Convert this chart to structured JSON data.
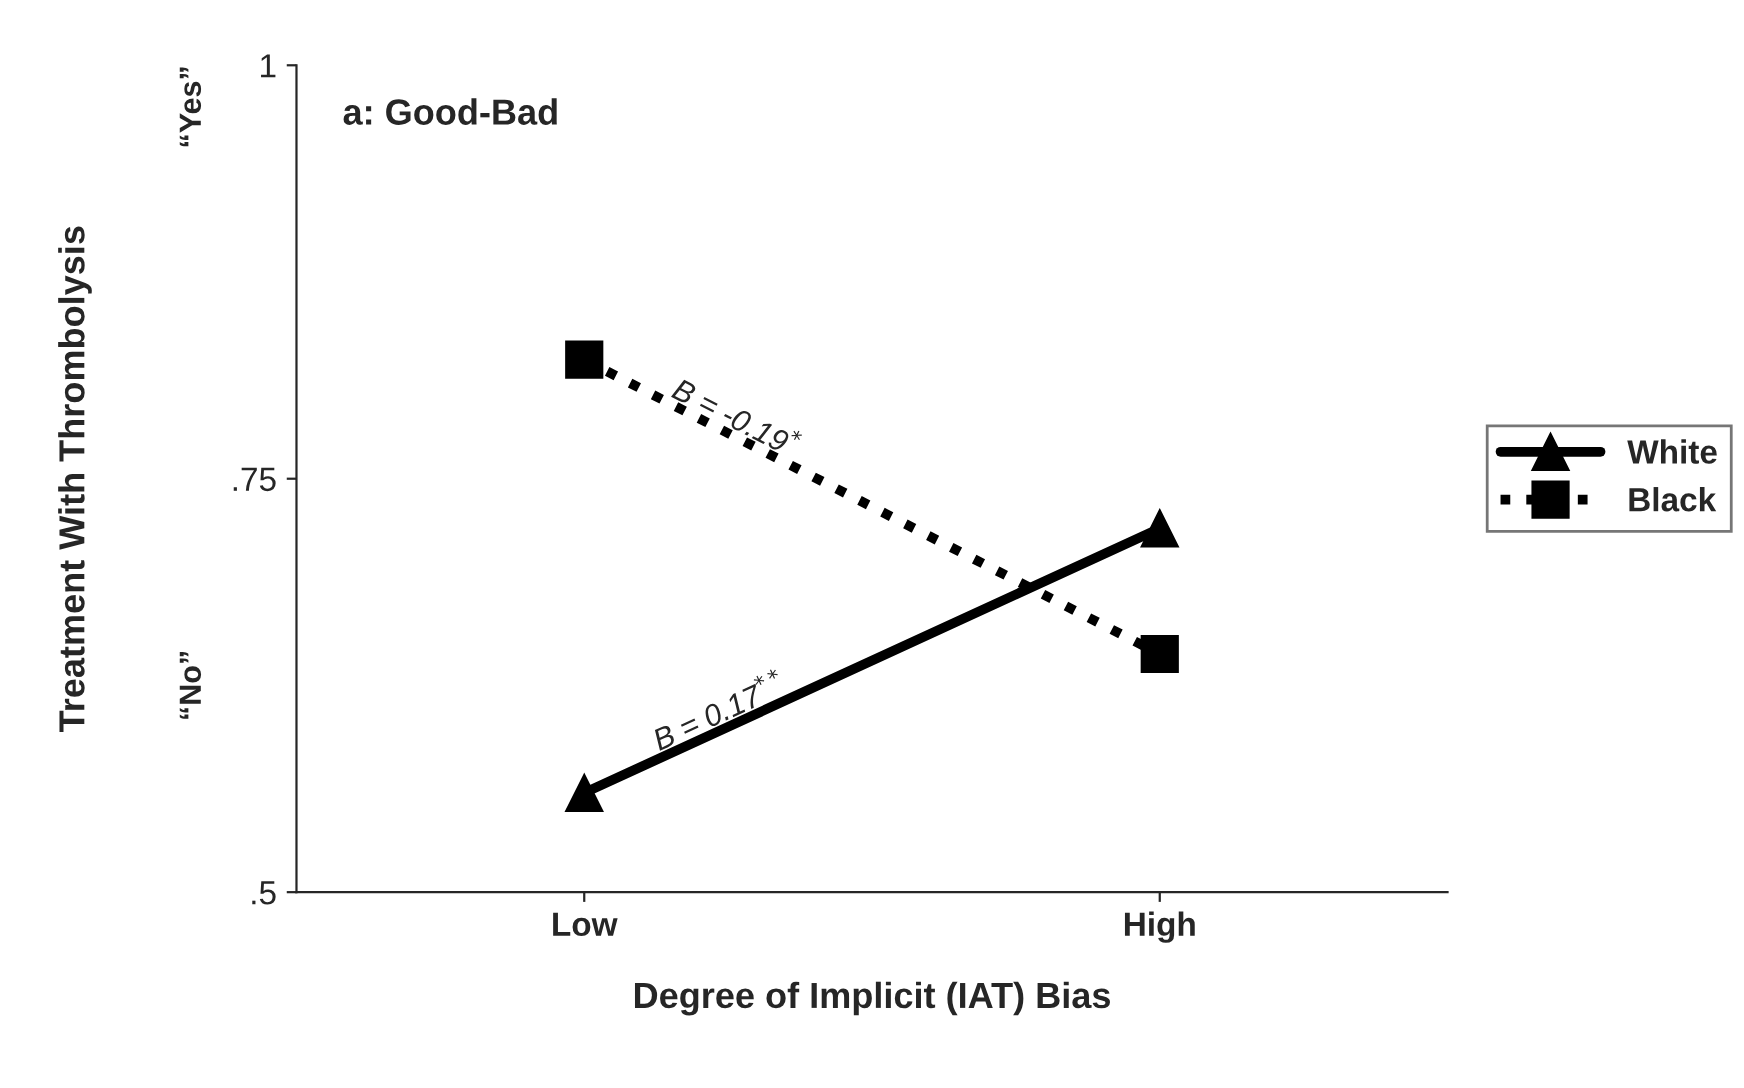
{
  "chart_data": {
    "type": "line",
    "categories": [
      "Low",
      "High"
    ],
    "series": [
      {
        "name": "White",
        "color": "#000000",
        "values": [
          0.56,
          0.72
        ],
        "marker": "triangle",
        "line_style": "solid"
      },
      {
        "name": "Black",
        "color": "#000000",
        "values": [
          0.822,
          0.644
        ],
        "marker": "square",
        "line_style": "dotted"
      }
    ],
    "xlabel": "Degree of Implicit (IAT) Bias",
    "ylabel": "Treatment With Thrombolysis",
    "ylim": [
      0.5,
      1
    ],
    "yticks": [
      {
        "value": 0.5,
        "label": ".5"
      },
      {
        "value": 0.75,
        "label": ".75"
      },
      {
        "value": 1,
        "label": "1"
      }
    ],
    "annotations": [
      "a: Good-Bad",
      "“Yes”",
      "“No”",
      "B = 0.17$^{**}$",
      "B = -0.19$^{*}$"
    ],
    "legend": "right",
    "grid": false
  }
}
